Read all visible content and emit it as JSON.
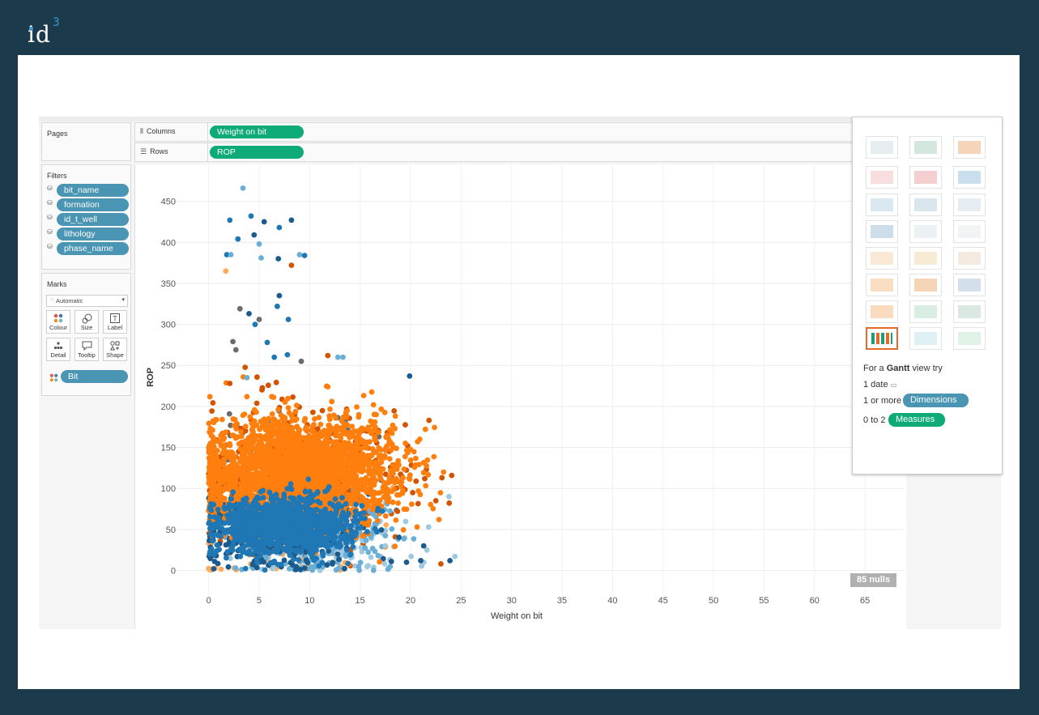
{
  "brand": {
    "logo_text": "id",
    "logo_sup": "3"
  },
  "shelves": {
    "columns_label": "Columns",
    "columns_pill": "Weight on bit",
    "rows_label": "Rows",
    "rows_pill": "ROP"
  },
  "pages": {
    "title": "Pages"
  },
  "filters": {
    "title": "Filters",
    "items": [
      "bit_name",
      "formation",
      "id_t_well",
      "lithology",
      "phase_name"
    ]
  },
  "marks": {
    "title": "Marks",
    "type": "Automatic",
    "buttons": {
      "colour": "Colour",
      "size": "Size",
      "label": "Label",
      "detail": "Detail",
      "tooltip": "Tooltip",
      "shape": "Shape"
    },
    "colour_pill": "Bit"
  },
  "show_me": {
    "hint_prefix": "For a",
    "hint_chart": "Gantt",
    "hint_suffix": "view try",
    "req_date": "1 date",
    "req_dim_prefix": "1 or more",
    "req_dim_pill": "Dimensions",
    "req_meas_prefix": "0 to 2",
    "req_meas_pill": "Measures"
  },
  "nulls_badge": "85 nulls",
  "colors": {
    "orange": "#ff7f0e",
    "dark_orange": "#d35400",
    "light_orange": "#ffab5e",
    "blue": "#1f77b4",
    "dark_blue": "#1a5a8c",
    "light_blue": "#6baed6",
    "pale_blue": "#9ecae1",
    "gray": "#6c6c6c",
    "green_pill": "#0eab79",
    "blue_pill": "#4a95b3"
  },
  "chart_data": {
    "type": "scatter",
    "xlabel": "Weight on bit",
    "ylabel": "ROP",
    "xlim": [
      -3.5,
      69
    ],
    "ylim": [
      -35,
      495
    ],
    "xticks": [
      0,
      5,
      10,
      15,
      20,
      25,
      30,
      35,
      40,
      45,
      50,
      55,
      60,
      65
    ],
    "yticks": [
      0,
      50,
      100,
      150,
      200,
      250,
      300,
      350,
      400,
      450
    ],
    "grid": true,
    "clusters": [
      {
        "color": "orange",
        "cx": 9,
        "cy": 120,
        "sx": 4.8,
        "sy": 32,
        "n": 2600
      },
      {
        "color": "dark_orange",
        "cx": 9,
        "cy": 115,
        "sx": 5.5,
        "sy": 38,
        "n": 500
      },
      {
        "color": "blue",
        "cx": 7.5,
        "cy": 55,
        "sx": 3.3,
        "sy": 17,
        "n": 1300
      },
      {
        "color": "dark_blue",
        "cx": 7,
        "cy": 50,
        "sx": 4.5,
        "sy": 28,
        "n": 320
      },
      {
        "color": "light_blue",
        "cx": 11,
        "cy": 45,
        "sx": 4.2,
        "sy": 28,
        "n": 220
      },
      {
        "color": "pale_blue",
        "cx": 12,
        "cy": 40,
        "sx": 4,
        "sy": 22,
        "n": 140
      },
      {
        "color": "gray",
        "cx": 7.5,
        "cy": 110,
        "sx": 4,
        "sy": 50,
        "n": 110
      },
      {
        "color": "light_orange",
        "cx": 6,
        "cy": 50,
        "sx": 5,
        "sy": 35,
        "n": 140
      }
    ],
    "outliers": [
      {
        "x": 3.4,
        "y": 466,
        "c": "light_blue"
      },
      {
        "x": 4.2,
        "y": 432,
        "c": "blue"
      },
      {
        "x": 2.1,
        "y": 427,
        "c": "blue"
      },
      {
        "x": 8.2,
        "y": 427,
        "c": "dark_blue"
      },
      {
        "x": 5.5,
        "y": 425,
        "c": "dark_blue"
      },
      {
        "x": 7,
        "y": 418,
        "c": "blue"
      },
      {
        "x": 4.5,
        "y": 409,
        "c": "dark_blue"
      },
      {
        "x": 2.9,
        "y": 404,
        "c": "blue"
      },
      {
        "x": 5,
        "y": 398,
        "c": "light_blue"
      },
      {
        "x": 9,
        "y": 385,
        "c": "light_blue"
      },
      {
        "x": 9.5,
        "y": 384,
        "c": "blue"
      },
      {
        "x": 1.8,
        "y": 385,
        "c": "blue"
      },
      {
        "x": 2.2,
        "y": 385,
        "c": "light_blue"
      },
      {
        "x": 5.2,
        "y": 381,
        "c": "light_blue"
      },
      {
        "x": 6.9,
        "y": 380,
        "c": "dark_blue"
      },
      {
        "x": 8.2,
        "y": 372,
        "c": "dark_orange"
      },
      {
        "x": 1.7,
        "y": 365,
        "c": "light_orange"
      },
      {
        "x": 7,
        "y": 335,
        "c": "dark_blue"
      },
      {
        "x": 3.1,
        "y": 319,
        "c": "gray"
      },
      {
        "x": 4,
        "y": 313,
        "c": "dark_blue"
      },
      {
        "x": 6.8,
        "y": 322,
        "c": "blue"
      },
      {
        "x": 5,
        "y": 306,
        "c": "gray"
      },
      {
        "x": 4.6,
        "y": 300,
        "c": "blue"
      },
      {
        "x": 7.9,
        "y": 306,
        "c": "blue"
      },
      {
        "x": 2.4,
        "y": 279,
        "c": "gray"
      },
      {
        "x": 2.7,
        "y": 269,
        "c": "gray"
      },
      {
        "x": 5.8,
        "y": 278,
        "c": "blue"
      },
      {
        "x": 7.8,
        "y": 263,
        "c": "blue"
      },
      {
        "x": 6.5,
        "y": 260,
        "c": "blue"
      },
      {
        "x": 12.8,
        "y": 260,
        "c": "light_blue"
      },
      {
        "x": 13.3,
        "y": 260,
        "c": "light_blue"
      },
      {
        "x": 11.8,
        "y": 262,
        "c": "dark_orange"
      },
      {
        "x": 19.9,
        "y": 237,
        "c": "dark_blue"
      },
      {
        "x": 2.1,
        "y": 228,
        "c": "dark_orange"
      },
      {
        "x": 3.8,
        "y": 235,
        "c": "light_blue"
      },
      {
        "x": 21.4,
        "y": 112,
        "c": "dark_orange"
      },
      {
        "x": 23.1,
        "y": 113,
        "c": "dark_orange"
      },
      {
        "x": 23.8,
        "y": 90,
        "c": "pale_blue"
      },
      {
        "x": 22.5,
        "y": 85,
        "c": "dark_orange"
      },
      {
        "x": 23.9,
        "y": 12,
        "c": "dark_blue"
      },
      {
        "x": 23,
        "y": 8,
        "c": "dark_orange"
      },
      {
        "x": 21,
        "y": 12,
        "c": "dark_blue"
      },
      {
        "x": 18.1,
        "y": 11,
        "c": "dark_blue"
      },
      {
        "x": 17.5,
        "y": 30,
        "c": "pale_blue"
      },
      {
        "x": 21.3,
        "y": 30,
        "c": "dark_blue"
      },
      {
        "x": 19.6,
        "y": 10,
        "c": "dark_blue"
      }
    ]
  }
}
